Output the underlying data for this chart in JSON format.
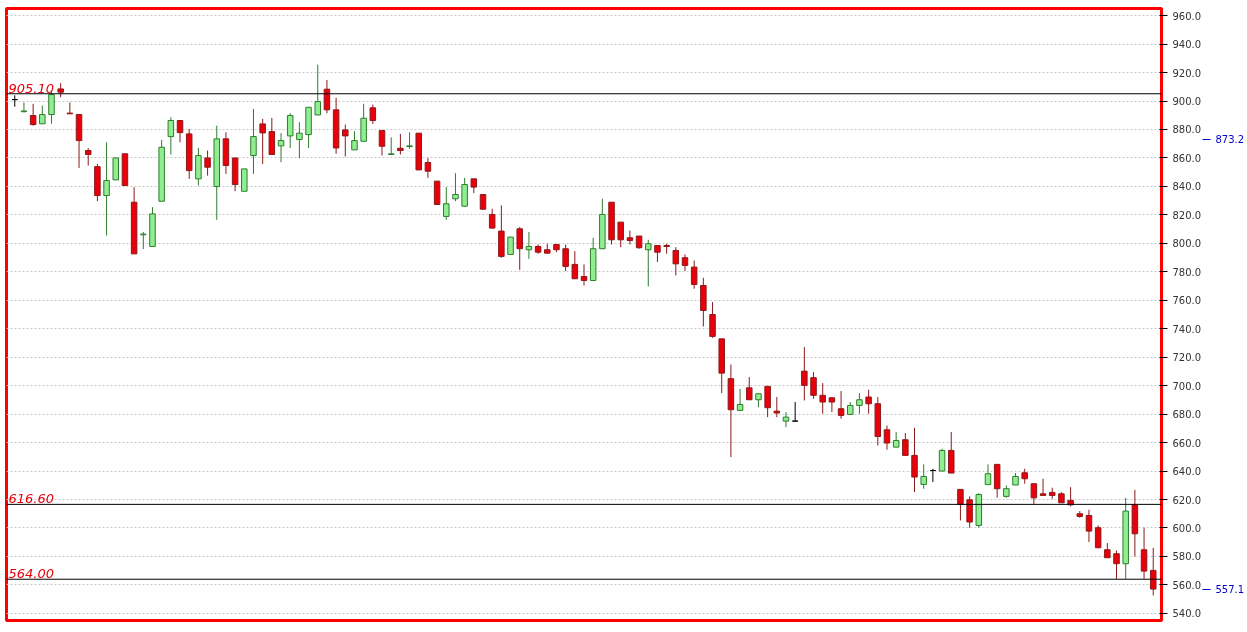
{
  "chart_data": {
    "type": "candlestick",
    "categories": [
      null,
      null,
      null,
      null,
      null,
      null,
      null,
      null,
      null,
      null,
      null,
      null,
      null,
      null,
      null,
      null,
      null,
      null,
      null,
      null,
      null,
      null,
      null,
      null,
      null,
      null,
      null,
      null,
      null,
      null,
      null,
      null,
      null,
      null,
      null,
      null,
      null,
      null,
      null,
      null,
      null,
      null,
      null,
      null,
      null,
      null,
      null,
      null,
      null,
      null,
      null,
      null,
      null,
      null,
      null,
      null,
      null,
      null,
      null,
      null,
      null,
      null,
      null,
      null,
      null,
      null,
      null,
      null,
      null,
      null,
      null,
      null,
      null,
      null,
      null,
      null,
      null,
      null,
      null,
      null,
      null,
      null,
      null,
      null,
      null,
      null,
      null,
      null,
      null,
      null,
      null,
      null,
      null,
      null,
      null,
      null,
      null,
      null,
      null,
      null,
      null,
      null,
      null,
      null,
      null,
      null,
      null,
      null,
      null,
      null,
      null,
      null,
      null,
      null,
      null,
      null,
      null,
      null,
      null,
      null,
      null,
      null,
      null,
      null,
      null
    ],
    "ohlc": [
      [
        901,
        904,
        896,
        901
      ],
      [
        892.5,
        899,
        892,
        893
      ],
      [
        889.8,
        898,
        882.7,
        883.4
      ],
      [
        884,
        896.8,
        884,
        890.5
      ],
      [
        890.5,
        906.9,
        884,
        904.5
      ],
      [
        908.5,
        912.5,
        902.6,
        906.2
      ],
      [
        891.5,
        899,
        891,
        891
      ],
      [
        890.5,
        890.5,
        853,
        872.2
      ],
      [
        865.2,
        867,
        854.7,
        862.4
      ],
      [
        853.9,
        855.8,
        829.6,
        833.6
      ],
      [
        833.6,
        871,
        805.5,
        844.1
      ],
      [
        844.6,
        860,
        844.6,
        860
      ],
      [
        862.9,
        862.9,
        840.6,
        840.6
      ],
      [
        828.9,
        839.4,
        792.6,
        792.6
      ],
      [
        806,
        808,
        796,
        806.5
      ],
      [
        797.8,
        825.4,
        797.8,
        820.7
      ],
      [
        829.6,
        872.7,
        829.6,
        867.5
      ],
      [
        875,
        888.6,
        862.4,
        886.3
      ],
      [
        886.3,
        886.3,
        871,
        877.8
      ],
      [
        876.9,
        880.4,
        845.3,
        851.1
      ],
      [
        845.3,
        867,
        840.6,
        861.7
      ],
      [
        860,
        865.2,
        847.6,
        853.5
      ],
      [
        839.9,
        882.7,
        816.5,
        873.4
      ],
      [
        873.4,
        878,
        848.8,
        854.7
      ],
      [
        860,
        860,
        836.6,
        841.3
      ],
      [
        836.6,
        852.3,
        836.6,
        852.3
      ],
      [
        861.7,
        894.5,
        848.8,
        875
      ],
      [
        883.9,
        887.4,
        855.8,
        877.6
      ],
      [
        878.5,
        888.1,
        862.4,
        862.4
      ],
      [
        868.5,
        877.4,
        857,
        872.2
      ],
      [
        875.5,
        891.4,
        867,
        889.8
      ],
      [
        872.9,
        885.1,
        859.8,
        877.4
      ],
      [
        876.4,
        895.6,
        867,
        895.6
      ],
      [
        890.2,
        925.6,
        890.2,
        899.6
      ],
      [
        908.3,
        914.8,
        891.4,
        893.8
      ],
      [
        893.8,
        902.2,
        862.9,
        867
      ],
      [
        879.7,
        883.4,
        861,
        875.5
      ],
      [
        865.7,
        878.8,
        865.7,
        872.2
      ],
      [
        871.7,
        898,
        871.7,
        887.9
      ],
      [
        895.2,
        897.5,
        883.9,
        886.3
      ],
      [
        879.2,
        879.2,
        861.7,
        868.2
      ],
      [
        862.4,
        874.5,
        862,
        862.9
      ],
      [
        866.8,
        876.9,
        862.4,
        865.2
      ],
      [
        868,
        878,
        866.4,
        868.5
      ],
      [
        877.4,
        877.4,
        851.6,
        851.6
      ],
      [
        856.8,
        860,
        846,
        850.7
      ],
      [
        843.7,
        843.7,
        827.3,
        827.3
      ],
      [
        818.9,
        839.5,
        816.5,
        827.8
      ],
      [
        831.3,
        849.3,
        829.6,
        834.3
      ],
      [
        826.1,
        846,
        826.1,
        841.3
      ],
      [
        845.3,
        845.3,
        835.3,
        839.5
      ],
      [
        834.3,
        834.3,
        823.6,
        824
      ],
      [
        820.3,
        824.3,
        810.2,
        810.7
      ],
      [
        808.6,
        826.6,
        789.9,
        790.8
      ],
      [
        792.2,
        804.4,
        792.2,
        804.4
      ],
      [
        810.2,
        811.4,
        781.4,
        796.2
      ],
      [
        795.5,
        807.9,
        789.1,
        797.8
      ],
      [
        797.8,
        799.2,
        792.7,
        793.8
      ],
      [
        795.5,
        799.7,
        792.7,
        793.1
      ],
      [
        799.2,
        799.2,
        793.8,
        795.5
      ],
      [
        796.2,
        799.2,
        780.5,
        783.8
      ],
      [
        785.2,
        794.5,
        775.1,
        775.1
      ],
      [
        776.7,
        785.2,
        770.4,
        773.9
      ],
      [
        773.9,
        803.9,
        773.5,
        796.2
      ],
      [
        796.2,
        831.3,
        796.2,
        820.3
      ],
      [
        828.9,
        828.9,
        799.2,
        802.5
      ],
      [
        814.9,
        814.9,
        797.3,
        802.5
      ],
      [
        803.9,
        809,
        799.2,
        802
      ],
      [
        805.1,
        805.1,
        796.2,
        796.9
      ],
      [
        795.5,
        802.5,
        769.7,
        799.7
      ],
      [
        798.5,
        798.5,
        786.8,
        793.8
      ],
      [
        798.5,
        799.7,
        792.7,
        797.8
      ],
      [
        795,
        797.3,
        777.4,
        785.6
      ],
      [
        789.9,
        792.2,
        780.5,
        784.5
      ],
      [
        783.3,
        788,
        768.1,
        771.1
      ],
      [
        770.4,
        775.8,
        741.6,
        752.8
      ],
      [
        750,
        758.7,
        733.6,
        734.6
      ],
      [
        732.9,
        732.9,
        694.8,
        708.8
      ],
      [
        704.9,
        714.9,
        649.8,
        683.1
      ],
      [
        682.6,
        697.8,
        682.6,
        686.8
      ],
      [
        698.5,
        706,
        690.1,
        690.1
      ],
      [
        690.1,
        694.3,
        684.9,
        694.3
      ],
      [
        699.5,
        699.5,
        677.9,
        684.5
      ],
      [
        682.1,
        692,
        677.9,
        680.8
      ],
      [
        675.1,
        681.4,
        670.9,
        677.9
      ],
      [
        675.1,
        688.5,
        675.1,
        675.1
      ],
      [
        710.2,
        727.1,
        689.6,
        700.2
      ],
      [
        705.6,
        709.5,
        690.8,
        693.2
      ],
      [
        693.2,
        701.8,
        680.3,
        688.5
      ],
      [
        691.5,
        691.5,
        681.4,
        688.5
      ],
      [
        683.8,
        696.2,
        676.8,
        679.1
      ],
      [
        679.8,
        688.5,
        679.8,
        686.1
      ],
      [
        686.1,
        694.8,
        680.3,
        690.1
      ],
      [
        692,
        697.1,
        680.3,
        687.3
      ],
      [
        687.3,
        692,
        658,
        664.3
      ],
      [
        669,
        672,
        655,
        659.7
      ],
      [
        656.8,
        667.4,
        656.8,
        661.5
      ],
      [
        662,
        666.7,
        651,
        651
      ],
      [
        651,
        670.4,
        625.2,
        635.8
      ],
      [
        630.6,
        644.7,
        627.6,
        636.2
      ],
      [
        640.4,
        641.6,
        632.3,
        640.4
      ],
      [
        640,
        655.7,
        640,
        654.5
      ],
      [
        654.5,
        667.4,
        638.6,
        638.6
      ],
      [
        627.1,
        627.1,
        605.3,
        616.6
      ],
      [
        619.8,
        622.2,
        600.2,
        604.2
      ],
      [
        601.8,
        624.5,
        600.2,
        623.5
      ],
      [
        630.5,
        644.7,
        630.5,
        638.1
      ],
      [
        644.7,
        644.7,
        621.3,
        627.6
      ],
      [
        622.2,
        629.9,
        621.3,
        627.6
      ],
      [
        630.2,
        638.6,
        630.2,
        636.2
      ],
      [
        638.8,
        641.6,
        631.1,
        634.6
      ],
      [
        631.1,
        631.1,
        616.5,
        621.2
      ],
      [
        624,
        634.6,
        622.9,
        622.9
      ],
      [
        625,
        628.3,
        620.5,
        622.9
      ],
      [
        624,
        625.2,
        617.7,
        617.7
      ],
      [
        619.4,
        628.7,
        615.1,
        616.3
      ],
      [
        610,
        611.9,
        607.2,
        608.1
      ],
      [
        608.8,
        612.8,
        590.1,
        597.8
      ],
      [
        600.2,
        601.8,
        586.1,
        586.1
      ],
      [
        584.7,
        589.4,
        579.1,
        579.1
      ],
      [
        581.9,
        584.2,
        564.3,
        574.9
      ],
      [
        574.9,
        621.2,
        564.3,
        611.9
      ],
      [
        616.5,
        626.8,
        580,
        595.9
      ],
      [
        584.7,
        600.2,
        564.3,
        569.7
      ],
      [
        570.2,
        586.1,
        552.6,
        557.1
      ]
    ],
    "ylim": [
      535,
      965
    ],
    "yticks": [
      {
        "value": 540,
        "label": "540.0"
      },
      {
        "value": 560,
        "label": "560.0"
      },
      {
        "value": 580,
        "label": "580.0"
      },
      {
        "value": 600,
        "label": "600.0"
      },
      {
        "value": 620,
        "label": "620.0"
      },
      {
        "value": 640,
        "label": "640.0"
      },
      {
        "value": 660,
        "label": "660.0"
      },
      {
        "value": 680,
        "label": "680.0"
      },
      {
        "value": 700,
        "label": "700.0"
      },
      {
        "value": 720,
        "label": "720.0"
      },
      {
        "value": 740,
        "label": "740.0"
      },
      {
        "value": 760,
        "label": "760.0"
      },
      {
        "value": 780,
        "label": "780.0"
      },
      {
        "value": 800,
        "label": "800.0"
      },
      {
        "value": 820,
        "label": "820.0"
      },
      {
        "value": 840,
        "label": "840.0"
      },
      {
        "value": 860,
        "label": "860.0"
      },
      {
        "value": 880,
        "label": "880.0"
      },
      {
        "value": 900,
        "label": "900.0"
      },
      {
        "value": 920,
        "label": "920.0"
      },
      {
        "value": 940,
        "label": "940.0"
      },
      {
        "value": 960,
        "label": "960.0"
      }
    ],
    "y2lim": [
      535,
      965
    ],
    "y2ticks": [
      557.1,
      873.2
    ],
    "ref_lines": [
      {
        "axis": "y",
        "value": 905.1,
        "label": "905.10",
        "color": "#000000"
      },
      {
        "axis": "y",
        "value": 616.6,
        "label": "616.60",
        "color": "#000000"
      },
      {
        "axis": "y",
        "value": 564,
        "label": "564.00",
        "color": "#000000"
      }
    ],
    "grid": "y"
  }
}
